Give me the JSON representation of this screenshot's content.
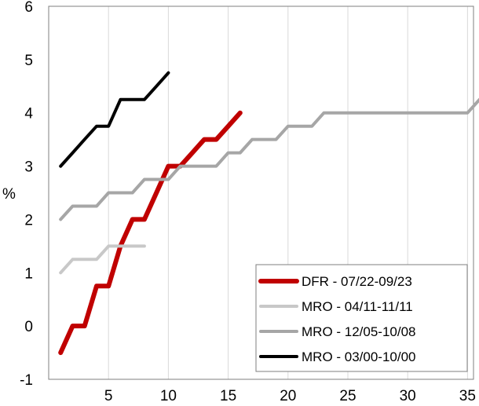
{
  "chart_data": {
    "type": "line",
    "ylabel": "%",
    "xlabel": "",
    "xlim": [
      0,
      35.5
    ],
    "ylim": [
      -1,
      6
    ],
    "xticks": [
      5,
      10,
      15,
      20,
      25,
      30,
      35
    ],
    "yticks": [
      -1,
      0,
      1,
      2,
      3,
      4,
      5,
      6
    ],
    "grid": "vertical",
    "legend_position": "bottom-right",
    "series": [
      {
        "name": "DFR - 07/22-09/23",
        "color": "#c00000",
        "width": 6,
        "points": [
          [
            1,
            -0.5
          ],
          [
            2,
            0
          ],
          [
            3,
            0
          ],
          [
            4,
            0.75
          ],
          [
            5,
            0.75
          ],
          [
            6,
            1.5
          ],
          [
            7,
            2
          ],
          [
            8,
            2
          ],
          [
            9,
            2.5
          ],
          [
            10,
            3
          ],
          [
            11,
            3
          ],
          [
            12,
            3.25
          ],
          [
            13,
            3.5
          ],
          [
            14,
            3.5
          ],
          [
            15,
            3.75
          ],
          [
            16,
            4
          ]
        ]
      },
      {
        "name": "MRO - 04/11-11/11",
        "color": "#c8c8c8",
        "width": 4,
        "points": [
          [
            1,
            1
          ],
          [
            2,
            1.25
          ],
          [
            3,
            1.25
          ],
          [
            4,
            1.25
          ],
          [
            5,
            1.5
          ],
          [
            6,
            1.5
          ],
          [
            7,
            1.5
          ],
          [
            8,
            1.5
          ]
        ]
      },
      {
        "name": "MRO - 12/05-10/08",
        "color": "#a6a6a6",
        "width": 4,
        "points": [
          [
            1,
            2
          ],
          [
            2,
            2.25
          ],
          [
            3,
            2.25
          ],
          [
            4,
            2.25
          ],
          [
            5,
            2.5
          ],
          [
            6,
            2.5
          ],
          [
            7,
            2.5
          ],
          [
            8,
            2.75
          ],
          [
            9,
            2.75
          ],
          [
            10,
            2.75
          ],
          [
            11,
            3
          ],
          [
            12,
            3
          ],
          [
            13,
            3
          ],
          [
            14,
            3
          ],
          [
            15,
            3.25
          ],
          [
            16,
            3.25
          ],
          [
            17,
            3.5
          ],
          [
            18,
            3.5
          ],
          [
            19,
            3.5
          ],
          [
            20,
            3.75
          ],
          [
            21,
            3.75
          ],
          [
            22,
            3.75
          ],
          [
            23,
            4
          ],
          [
            24,
            4
          ],
          [
            25,
            4
          ],
          [
            26,
            4
          ],
          [
            27,
            4
          ],
          [
            28,
            4
          ],
          [
            29,
            4
          ],
          [
            30,
            4
          ],
          [
            31,
            4
          ],
          [
            32,
            4
          ],
          [
            33,
            4
          ],
          [
            34,
            4
          ],
          [
            35,
            4
          ],
          [
            36,
            4.25
          ]
        ]
      },
      {
        "name": "MRO - 03/00-10/00",
        "color": "#000000",
        "width": 4,
        "points": [
          [
            1,
            3
          ],
          [
            2,
            3.25
          ],
          [
            3,
            3.5
          ],
          [
            4,
            3.75
          ],
          [
            5,
            3.75
          ],
          [
            6,
            4.25
          ],
          [
            7,
            4.25
          ],
          [
            8,
            4.25
          ],
          [
            9,
            4.5
          ],
          [
            10,
            4.75
          ]
        ]
      }
    ]
  }
}
